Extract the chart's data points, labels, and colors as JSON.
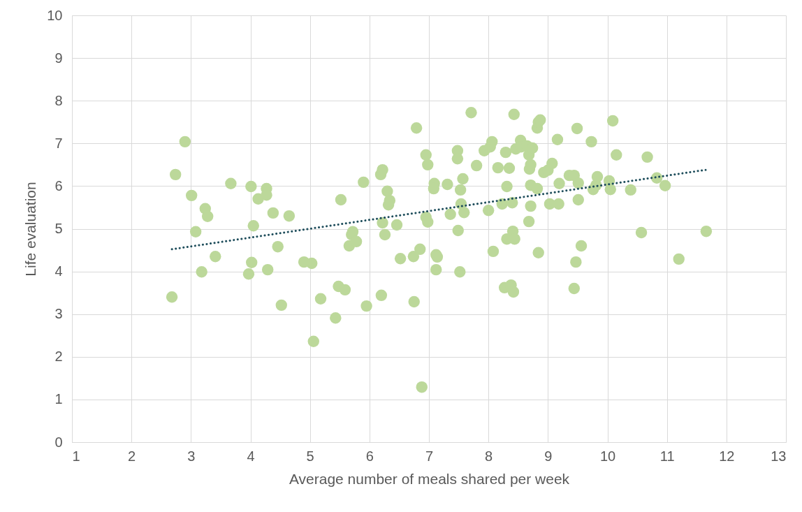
{
  "chart_data": {
    "type": "scatter",
    "xlabel": "Average number of meals shared per week",
    "ylabel": "Life evaluation",
    "xlim": [
      1,
      13
    ],
    "xticks": [
      1,
      2,
      3,
      4,
      5,
      6,
      7,
      8,
      9,
      10,
      11,
      12,
      13
    ],
    "ylim": [
      0,
      10
    ],
    "yticks": [
      0,
      1,
      2,
      3,
      4,
      5,
      6,
      7,
      8,
      9,
      10
    ],
    "grid": true,
    "series": [
      {
        "marker": "circle",
        "color": "#bcd89a",
        "x": [
          2.68,
          2.74,
          2.9,
          3.01,
          3.08,
          3.18,
          3.24,
          3.28,
          3.41,
          3.67,
          3.97,
          4.01,
          4.02,
          4.05,
          4.13,
          4.27,
          4.27,
          4.29,
          4.38,
          4.46,
          4.52,
          4.65,
          4.9,
          5.03,
          5.06,
          5.18,
          5.43,
          5.48,
          5.59,
          5.52,
          5.7,
          5.72,
          5.66,
          5.78,
          5.9,
          5.95,
          6.2,
          6.19,
          6.22,
          6.22,
          6.26,
          6.3,
          6.32,
          6.34,
          6.46,
          6.52,
          6.74,
          6.75,
          6.79,
          6.85,
          6.88,
          6.95,
          6.98,
          6.95,
          6.98,
          7.09,
          7.08,
          7.12,
          7.14,
          7.12,
          7.31,
          7.36,
          7.48,
          7.48,
          7.49,
          7.52,
          7.53,
          7.54,
          7.57,
          7.59,
          7.71,
          7.8,
          7.93,
          8.0,
          8.03,
          8.06,
          8.08,
          8.16,
          8.27,
          8.23,
          8.29,
          8.31,
          8.35,
          8.38,
          8.42,
          8.31,
          8.41,
          8.44,
          8.4,
          8.43,
          8.46,
          8.54,
          8.55,
          8.65,
          8.68,
          8.69,
          8.71,
          8.68,
          8.71,
          8.71,
          8.74,
          8.82,
          8.84,
          8.87,
          8.82,
          8.84,
          8.93,
          9.0,
          9.07,
          9.03,
          9.16,
          9.18,
          9.19,
          9.36,
          9.44,
          9.44,
          9.47,
          9.49,
          9.51,
          9.51,
          9.56,
          9.73,
          9.76,
          9.83,
          9.81,
          10.03,
          10.05,
          10.09,
          10.15,
          10.39,
          10.57,
          10.67,
          10.83,
          10.97,
          11.2,
          11.66
        ],
        "values": [
          3.4,
          6.27,
          7.04,
          5.78,
          4.93,
          3.99,
          5.47,
          5.29,
          4.35,
          6.06,
          3.94,
          5.99,
          4.21,
          5.07,
          5.7,
          5.94,
          5.79,
          4.04,
          5.37,
          4.58,
          3.21,
          5.3,
          4.22,
          4.19,
          2.36,
          3.36,
          2.91,
          3.65,
          3.57,
          5.68,
          4.86,
          4.93,
          4.6,
          4.7,
          6.09,
          3.19,
          3.44,
          6.27,
          6.38,
          5.14,
          4.86,
          5.88,
          5.56,
          5.66,
          5.09,
          4.3,
          4.35,
          3.29,
          7.36,
          4.52,
          1.29,
          6.73,
          6.5,
          5.27,
          5.16,
          6.06,
          5.94,
          4.39,
          4.34,
          4.04,
          6.04,
          5.34,
          6.83,
          6.64,
          4.96,
          3.99,
          5.91,
          5.58,
          6.17,
          5.38,
          7.72,
          6.48,
          6.83,
          5.43,
          6.92,
          7.04,
          4.47,
          6.43,
          3.62,
          5.58,
          6.79,
          5.99,
          6.42,
          3.68,
          3.52,
          4.76,
          4.94,
          4.76,
          5.61,
          7.68,
          6.87,
          7.07,
          6.92,
          6.94,
          6.73,
          6.4,
          6.5,
          5.17,
          5.53,
          6.02,
          6.89,
          7.36,
          7.5,
          7.55,
          5.94,
          4.44,
          6.32,
          6.37,
          6.53,
          5.58,
          7.09,
          5.58,
          6.06,
          6.25,
          6.25,
          3.6,
          4.22,
          7.35,
          5.68,
          6.07,
          4.6,
          7.04,
          5.92,
          6.22,
          6.02,
          6.12,
          5.92,
          7.53,
          6.73,
          5.91,
          4.91,
          6.68,
          6.19,
          6.01,
          4.29,
          4.94
        ]
      },
      {
        "type": "line",
        "color": "#1f4e5c",
        "line_style": "dotted",
        "x": [
          2.68,
          11.65
        ],
        "values": [
          4.52,
          6.38
        ]
      }
    ]
  }
}
